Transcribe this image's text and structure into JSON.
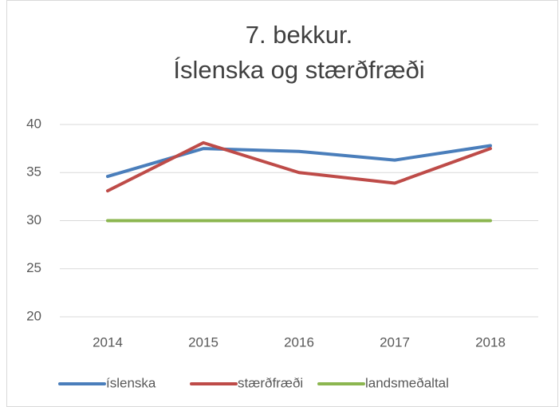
{
  "chart_data": {
    "type": "line",
    "title": [
      "7. bekkur.",
      "Íslenska og stærðfræði"
    ],
    "categories": [
      "2014",
      "2015",
      "2016",
      "2017",
      "2018"
    ],
    "series": [
      {
        "name": "íslenska",
        "color": "#4a7ebb",
        "values": [
          34.6,
          37.5,
          37.2,
          36.3,
          37.8
        ]
      },
      {
        "name": "stærðfræði",
        "color": "#be4b48",
        "values": [
          33.1,
          38.1,
          35.0,
          33.9,
          37.5
        ]
      },
      {
        "name": "landsmeðaltal",
        "color": "#8cb650",
        "values": [
          30,
          30,
          30,
          30,
          30
        ]
      }
    ],
    "ylim": [
      20,
      40
    ],
    "yticks": [
      20,
      25,
      30,
      35,
      40
    ],
    "grid": true,
    "legend": "bottom"
  }
}
